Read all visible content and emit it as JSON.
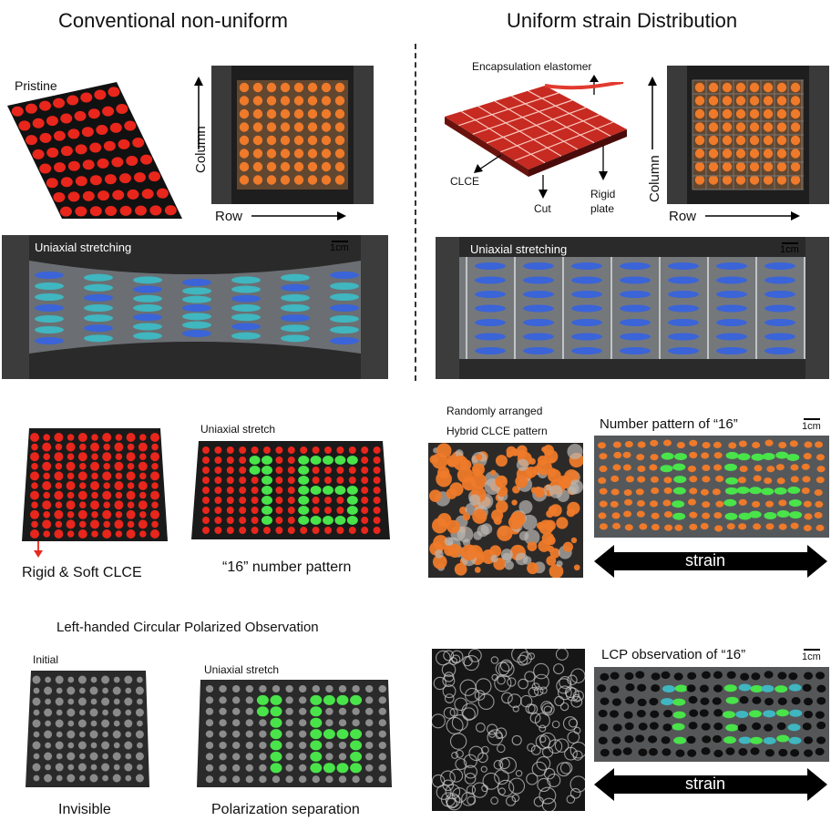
{
  "titles": {
    "left": "Conventional non-uniform",
    "right": "Uniform strain Distribution"
  },
  "top_left": {
    "pristine": "Pristine",
    "column": "Column",
    "row": "Row",
    "uniaxial_stretching": "Uniaxial stretching",
    "scale": "1cm"
  },
  "top_right": {
    "encapsulation": "Encapsulation elastomer",
    "clce": "CLCE",
    "cut": "Cut",
    "rigid_plate_1": "Rigid",
    "rigid_plate_2": "plate",
    "column": "Column",
    "row": "Row",
    "uniaxial_stretching": "Uniaxial stretching",
    "scale": "1cm"
  },
  "mid_left": {
    "uniaxial_stretch": "Uniaxial stretch",
    "rigid_soft": "Rigid & Soft CLCE",
    "number_pattern": "“16” number pattern"
  },
  "mid_right": {
    "random_1": "Randomly arranged",
    "random_2": "Hybrid CLCE pattern",
    "number_pattern_title": "Number pattern of “16”",
    "scale": "1cm",
    "strain": "strain"
  },
  "bottom_left": {
    "heading": "Left-handed Circular Polarized Observation",
    "initial": "Initial",
    "uniaxial_stretch": "Uniaxial stretch",
    "invisible": "Invisible",
    "polarization": "Polarization separation"
  },
  "bottom_right": {
    "lcp_title": "LCP observation of “16”",
    "scale": "1cm",
    "strain": "strain"
  },
  "colors": {
    "led_red": "#e8261c",
    "led_orange": "#ee7a2a",
    "led_green": "#49e34a",
    "led_blue": "#3a64d8",
    "led_teal": "#3fb6c0",
    "dark_panel": "#2b2b2b"
  }
}
